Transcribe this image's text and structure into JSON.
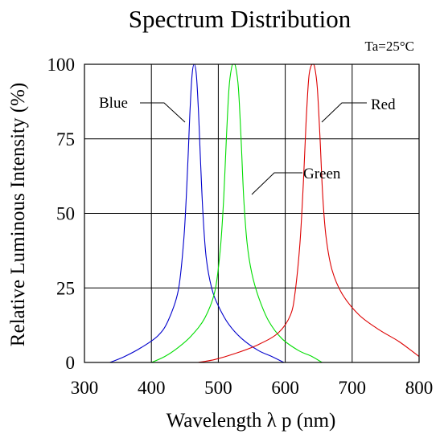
{
  "chart_data": {
    "type": "line",
    "title": "Spectrum Distribution",
    "condition": "Ta=25°C",
    "xlabel": "Wavelength  λ p (nm)",
    "ylabel": "Relative Luminous Intensity (%)",
    "xlim": [
      300,
      800
    ],
    "ylim": [
      0,
      100
    ],
    "xticks": [
      300,
      400,
      500,
      600,
      700,
      800
    ],
    "yticks": [
      0,
      25,
      50,
      75,
      100
    ],
    "grid": true,
    "legend_placement": "annotations on curves",
    "series": [
      {
        "name": "Blue",
        "color": "#0000cc",
        "points": [
          [
            338,
            0
          ],
          [
            360,
            2
          ],
          [
            385,
            5
          ],
          [
            410,
            9
          ],
          [
            425,
            14
          ],
          [
            440,
            24
          ],
          [
            448,
            40
          ],
          [
            452,
            55
          ],
          [
            455,
            70
          ],
          [
            458,
            86
          ],
          [
            461,
            97
          ],
          [
            464,
            100
          ],
          [
            467,
            97
          ],
          [
            470,
            86
          ],
          [
            473,
            70
          ],
          [
            477,
            50
          ],
          [
            482,
            35
          ],
          [
            490,
            25
          ],
          [
            500,
            19
          ],
          [
            515,
            13
          ],
          [
            535,
            8
          ],
          [
            560,
            4
          ],
          [
            580,
            2
          ],
          [
            598,
            0
          ]
        ]
      },
      {
        "name": "Green",
        "color": "#00dd00",
        "points": [
          [
            400,
            0
          ],
          [
            420,
            2
          ],
          [
            440,
            5
          ],
          [
            460,
            9
          ],
          [
            480,
            15
          ],
          [
            495,
            24
          ],
          [
            503,
            38
          ],
          [
            508,
            55
          ],
          [
            512,
            75
          ],
          [
            516,
            92
          ],
          [
            520,
            99
          ],
          [
            523,
            100
          ],
          [
            526,
            99
          ],
          [
            530,
            92
          ],
          [
            534,
            75
          ],
          [
            538,
            55
          ],
          [
            543,
            40
          ],
          [
            550,
            30
          ],
          [
            560,
            22
          ],
          [
            575,
            14
          ],
          [
            595,
            8
          ],
          [
            620,
            4
          ],
          [
            640,
            2
          ],
          [
            655,
            0
          ]
        ]
      },
      {
        "name": "Red",
        "color": "#dd0000",
        "points": [
          [
            470,
            0
          ],
          [
            495,
            1
          ],
          [
            525,
            3
          ],
          [
            560,
            6
          ],
          [
            590,
            10
          ],
          [
            608,
            16
          ],
          [
            615,
            24
          ],
          [
            622,
            40
          ],
          [
            627,
            60
          ],
          [
            631,
            80
          ],
          [
            635,
            95
          ],
          [
            638,
            99
          ],
          [
            641,
            100
          ],
          [
            644,
            99
          ],
          [
            648,
            92
          ],
          [
            652,
            75
          ],
          [
            656,
            56
          ],
          [
            661,
            42
          ],
          [
            670,
            31
          ],
          [
            685,
            23
          ],
          [
            710,
            16
          ],
          [
            740,
            11
          ],
          [
            770,
            7
          ],
          [
            800,
            2
          ]
        ]
      }
    ]
  }
}
